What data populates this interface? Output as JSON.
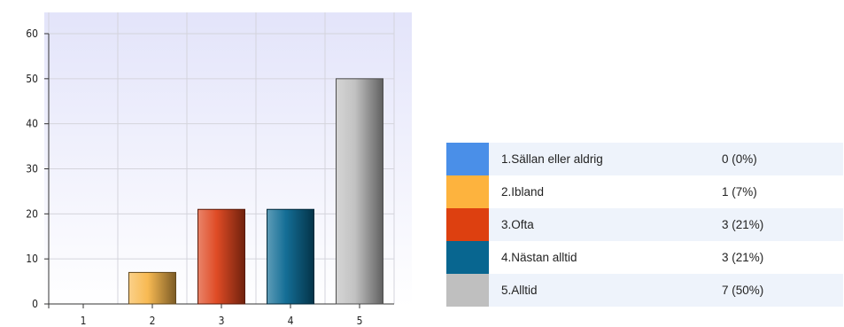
{
  "chart_data": {
    "type": "bar",
    "categories": [
      "1",
      "2",
      "3",
      "4",
      "5"
    ],
    "values": [
      0,
      7,
      21,
      21,
      50
    ],
    "yticks": [
      0,
      10,
      20,
      30,
      40,
      50,
      60
    ],
    "ylim": [
      0,
      60
    ],
    "colors": [
      "#4a8fe8",
      "#f8b64a",
      "#dd4219",
      "#086690",
      "#bfbfbf"
    ],
    "grid": true,
    "legend": [
      {
        "label": "1.Sällan eller aldrig",
        "value": "0 (0%)",
        "color": "#4a8fe8"
      },
      {
        "label": "2.Ibland",
        "value": "1 (7%)",
        "color": "#fdb33e"
      },
      {
        "label": "3.Ofta",
        "value": "3 (21%)",
        "color": "#dd4010"
      },
      {
        "label": "4.Nästan alltid",
        "value": "3 (21%)",
        "color": "#086690"
      },
      {
        "label": "5.Alltid",
        "value": "7 (50%)",
        "color": "#bfbfbf"
      }
    ]
  }
}
